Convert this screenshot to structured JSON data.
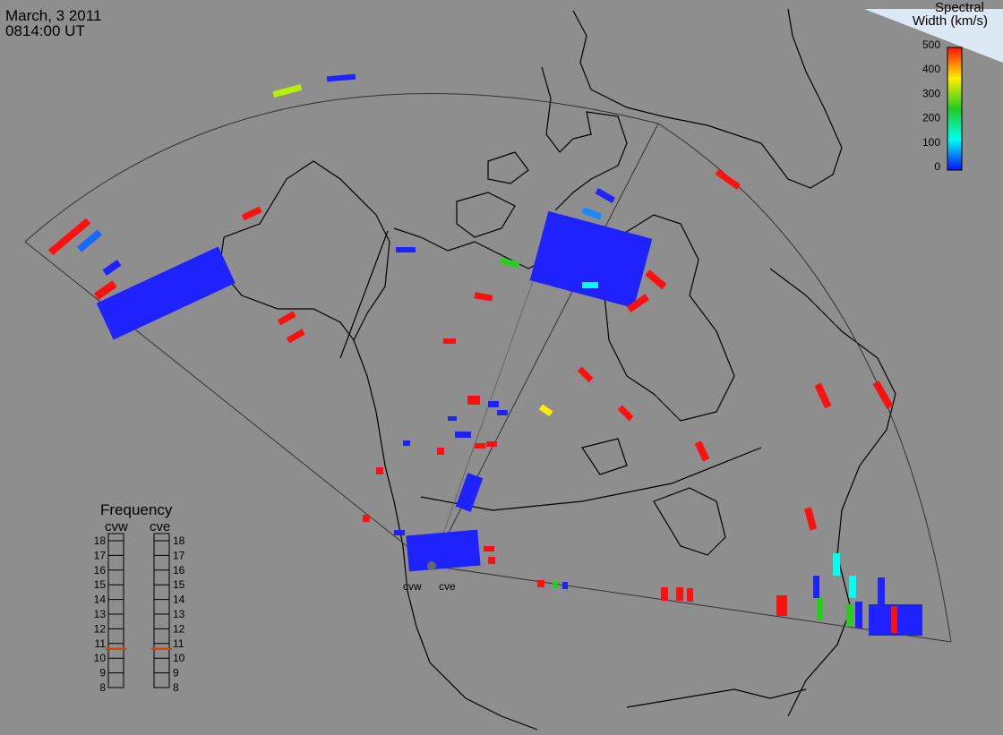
{
  "header": {
    "date": "March, 3 2011",
    "time": "0814:00 UT"
  },
  "colorbar": {
    "title_line1": "Spectral",
    "title_line2": "Width (km/s)",
    "ticks": [
      "500",
      "400",
      "300",
      "200",
      "100",
      "0"
    ],
    "colors": [
      "#ff1010",
      "#ffee00",
      "#22cc22",
      "#00ffee",
      "#0a10ff"
    ]
  },
  "frequency_panel": {
    "title": "Frequency",
    "columns": [
      "cvw",
      "cve"
    ],
    "ticks": [
      "18",
      "17",
      "16",
      "15",
      "14",
      "13",
      "12",
      "11",
      "10",
      "9",
      "8"
    ],
    "marker_value": 11,
    "marker_color": "#e04010"
  },
  "radars": {
    "west_label": "cvw",
    "east_label": "cve"
  }
}
